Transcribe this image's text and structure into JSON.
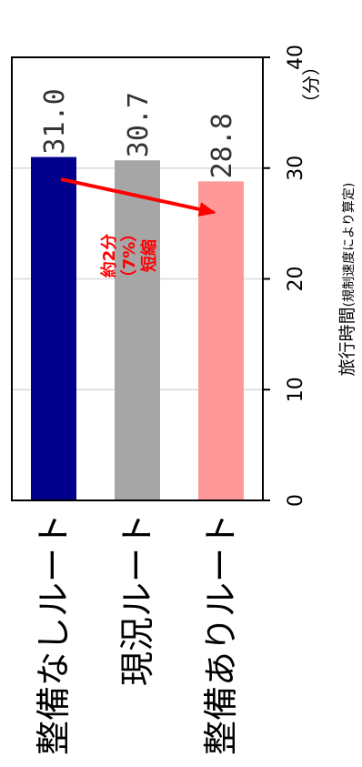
{
  "chart_data": {
    "type": "bar",
    "orientation": "horizontal",
    "categories": [
      "整備なしルート",
      "現況ルート",
      "整備ありルート"
    ],
    "values": [
      31.0,
      30.7,
      28.8
    ],
    "value_labels": [
      "31.0",
      "30.7",
      "28.8"
    ],
    "colors": [
      "#00008b",
      "#a6a6a6",
      "#ff9999"
    ],
    "xlabel": "旅行時間",
    "xlabel_note": "(規制速度により算定)",
    "unit": "（分）",
    "xlim": [
      0,
      40
    ],
    "xticks": [
      0,
      10,
      20,
      30,
      40
    ],
    "grid": true,
    "annotation": {
      "lines": [
        "約2分",
        "（7%）",
        "短縮"
      ],
      "color": "#ff0000",
      "arrow_from": {
        "category": "整備なしルート",
        "value": 29
      },
      "arrow_to": {
        "category": "整備ありルート",
        "value": 26
      }
    }
  }
}
